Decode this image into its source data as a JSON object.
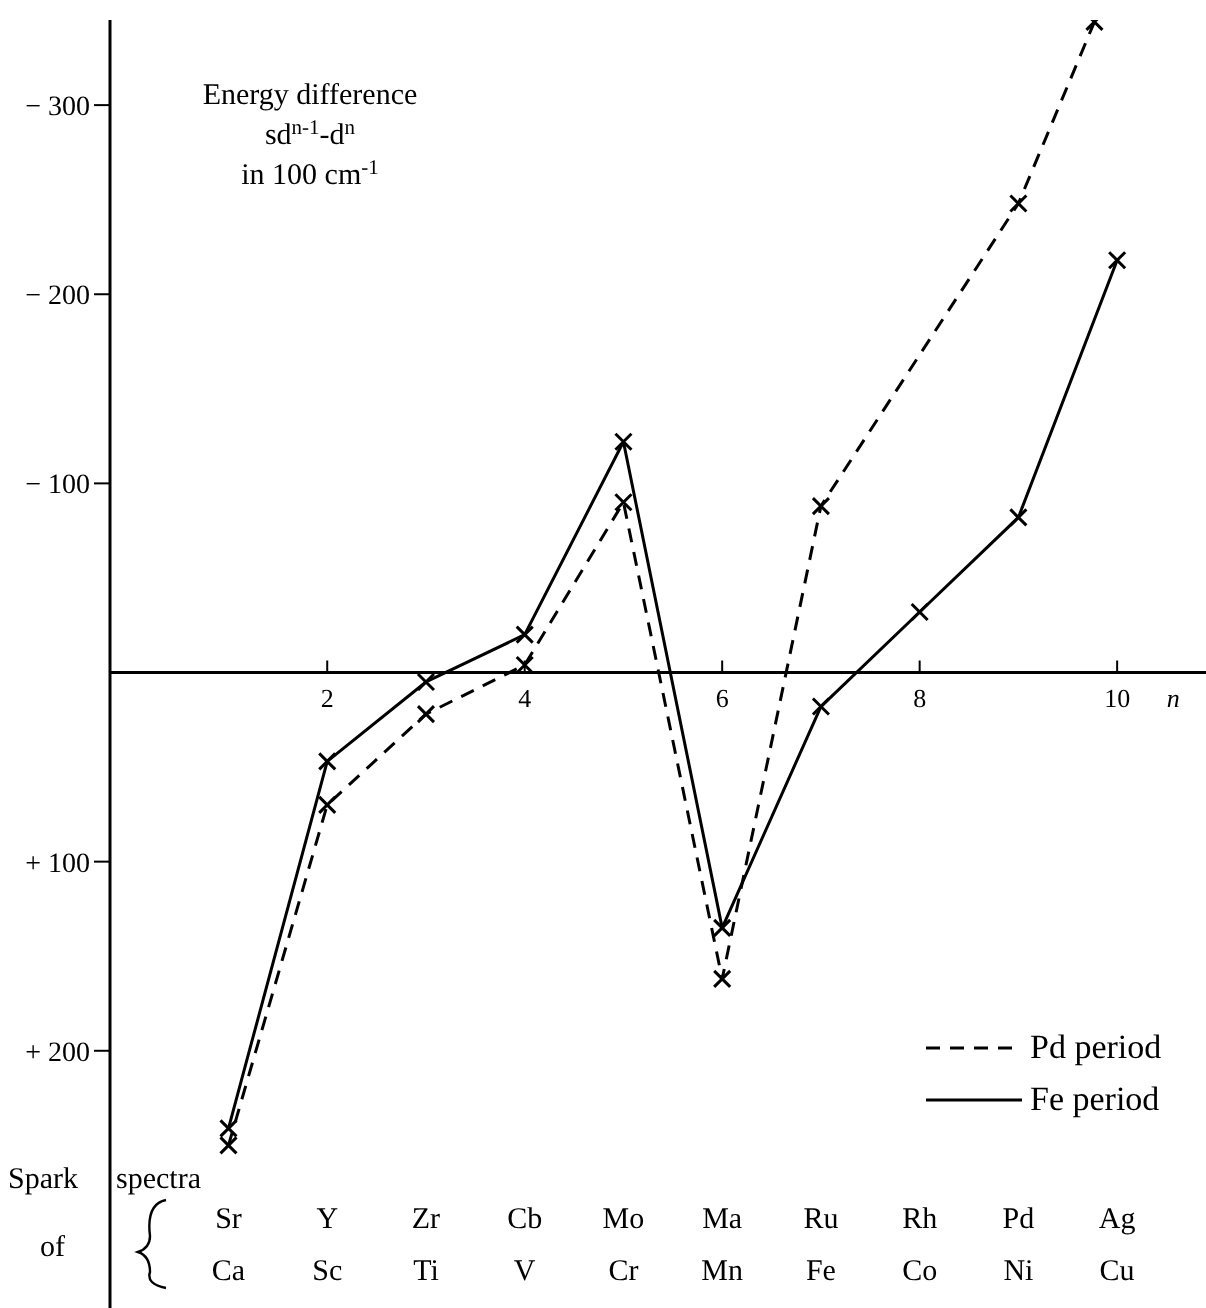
{
  "chart_data": {
    "type": "line",
    "ylabel": "Energy difference\nsd$^{n-1}$-d$^{n}$\nin 100 cm$^{-1}$",
    "xlabel": "n",
    "xlim": [
      -0.2,
      10.9
    ],
    "xticks": [
      2,
      4,
      6,
      8,
      10
    ],
    "ylim": [
      336,
      -345
    ],
    "yticks": [
      {
        "value": -300,
        "label": "− 300"
      },
      {
        "value": -200,
        "label": "− 200"
      },
      {
        "value": -100,
        "label": "− 100"
      },
      {
        "value": 100,
        "label": "+ 100"
      },
      {
        "value": 200,
        "label": "+ 200"
      }
    ],
    "marker": "cross",
    "legend": "bottom right",
    "series": [
      {
        "name": "Pd period",
        "color": "#000000",
        "line_style": "dashed",
        "x": [
          1,
          2,
          3,
          4,
          5,
          6,
          7,
          9,
          9.77
        ],
        "values": [
          250,
          70,
          22,
          -4,
          -90,
          162,
          -88,
          -248,
          -344
        ]
      },
      {
        "name": "Fe period",
        "color": "#000000",
        "line_style": "solid",
        "x": [
          1,
          2,
          3,
          4,
          5,
          6,
          7,
          8,
          9,
          10
        ],
        "values": [
          241,
          47,
          5,
          -20,
          -122,
          135,
          18,
          -32,
          -82,
          -218
        ]
      }
    ],
    "annotations": [
      "Spark spectra of",
      "Sr Y Zr Cb Mo Ma Ru Rh Pd Ag",
      "Ca Sc Ti V Cr Mn Fe Co Ni Cu"
    ]
  }
}
